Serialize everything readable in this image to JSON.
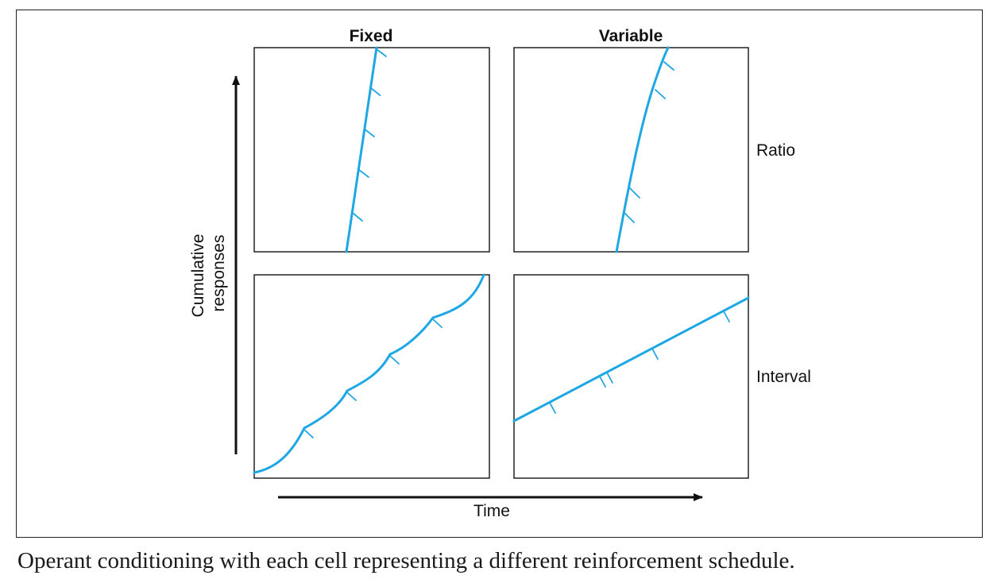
{
  "figure": {
    "columns": [
      "Fixed",
      "Variable"
    ],
    "rows": [
      "Ratio",
      "Interval"
    ],
    "y_axis_label": [
      "Cumulative",
      "responses"
    ],
    "x_axis_label": "Time",
    "curve_color": "#1ea7e4"
  },
  "caption": "Operant conditioning with each cell representing a different reinforcement schedule."
}
